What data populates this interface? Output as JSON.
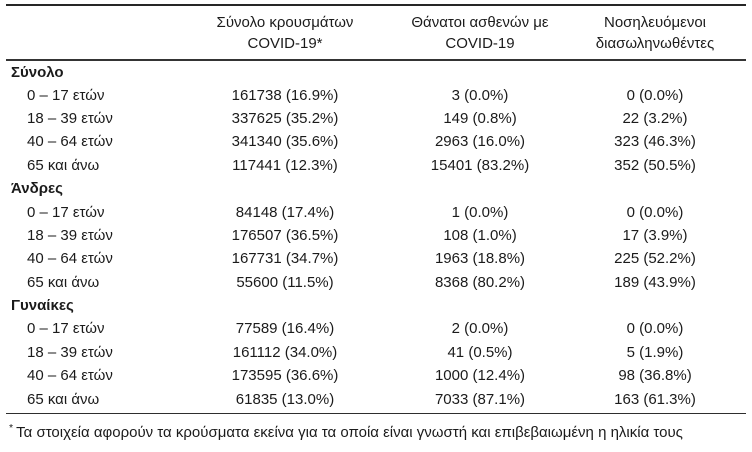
{
  "table": {
    "columns": [
      {
        "line1": "",
        "line2": ""
      },
      {
        "line1": "Σύνολο κρουσμάτων",
        "line2": "COVID-19*"
      },
      {
        "line1": "Θάνατοι ασθενών με",
        "line2": "COVID-19"
      },
      {
        "line1": "Νοσηλευόμενοι",
        "line2": "διασωληνωθέντες"
      }
    ],
    "sections": [
      {
        "label": "Σύνολο",
        "rows": [
          {
            "label": "0 – 17 ετών",
            "cases": "161738 (16.9%)",
            "deaths": "3 (0.0%)",
            "intubated": "0 (0.0%)"
          },
          {
            "label": "18 – 39 ετών",
            "cases": "337625 (35.2%)",
            "deaths": "149 (0.8%)",
            "intubated": "22 (3.2%)"
          },
          {
            "label": "40 – 64 ετών",
            "cases": "341340 (35.6%)",
            "deaths": "2963 (16.0%)",
            "intubated": "323 (46.3%)"
          },
          {
            "label": "65 και άνω",
            "cases": "117441 (12.3%)",
            "deaths": "15401 (83.2%)",
            "intubated": "352 (50.5%)"
          }
        ]
      },
      {
        "label": "Άνδρες",
        "rows": [
          {
            "label": "0 – 17 ετών",
            "cases": "84148 (17.4%)",
            "deaths": "1 (0.0%)",
            "intubated": "0 (0.0%)"
          },
          {
            "label": "18 – 39 ετών",
            "cases": "176507 (36.5%)",
            "deaths": "108 (1.0%)",
            "intubated": "17 (3.9%)"
          },
          {
            "label": "40 – 64 ετών",
            "cases": "167731 (34.7%)",
            "deaths": "1963 (18.8%)",
            "intubated": "225 (52.2%)"
          },
          {
            "label": "65 και άνω",
            "cases": "55600 (11.5%)",
            "deaths": "8368 (80.2%)",
            "intubated": "189 (43.9%)"
          }
        ]
      },
      {
        "label": "Γυναίκες",
        "rows": [
          {
            "label": "0 – 17 ετών",
            "cases": "77589 (16.4%)",
            "deaths": "2 (0.0%)",
            "intubated": "0 (0.0%)"
          },
          {
            "label": "18 – 39 ετών",
            "cases": "161112 (34.0%)",
            "deaths": "41 (0.5%)",
            "intubated": "5 (1.9%)"
          },
          {
            "label": "40 – 64 ετών",
            "cases": "173595 (36.6%)",
            "deaths": "1000 (12.4%)",
            "intubated": "98 (36.8%)"
          },
          {
            "label": "65 και άνω",
            "cases": "61835 (13.0%)",
            "deaths": "7033 (87.1%)",
            "intubated": "163 (61.3%)"
          }
        ]
      }
    ],
    "footnote": {
      "marker": "*",
      "text": "Τα στοιχεία αφορούν τα κρούσματα εκείνα για τα οποία είναι γνωστή και επιβεβαιωμένη η ηλικία τους"
    },
    "colors": {
      "text": "#1b1b1b",
      "rule": "#2b2b2b",
      "background": "#ffffff"
    }
  }
}
